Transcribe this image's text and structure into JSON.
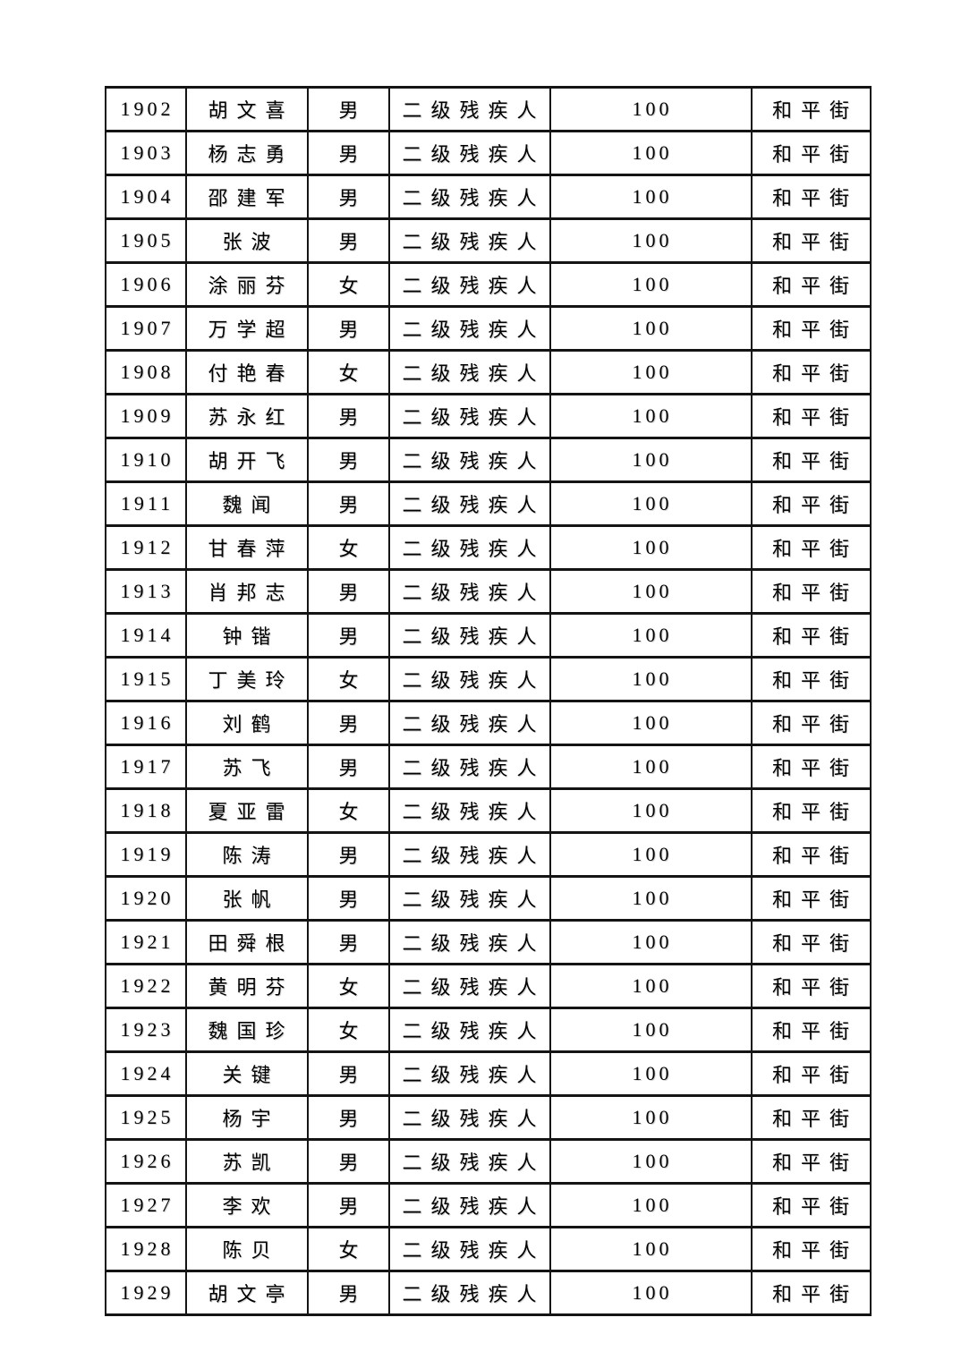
{
  "page": {
    "background_color": "#ffffff",
    "text_color": "#000000",
    "border_color": "#141414"
  },
  "table": {
    "visible_row_range": {
      "first_serial": "1902",
      "last_serial": "1929"
    },
    "column_semantics": [
      "serial",
      "name",
      "gender",
      "category",
      "amount",
      "street"
    ],
    "rows": [
      [
        "1902",
        "胡文喜",
        "男",
        "二级残疾人",
        "100",
        "和平街"
      ],
      [
        "1903",
        "杨志勇",
        "男",
        "二级残疾人",
        "100",
        "和平街"
      ],
      [
        "1904",
        "邵建军",
        "男",
        "二级残疾人",
        "100",
        "和平街"
      ],
      [
        "1905",
        "张波",
        "男",
        "二级残疾人",
        "100",
        "和平街"
      ],
      [
        "1906",
        "涂丽芬",
        "女",
        "二级残疾人",
        "100",
        "和平街"
      ],
      [
        "1907",
        "万学超",
        "男",
        "二级残疾人",
        "100",
        "和平街"
      ],
      [
        "1908",
        "付艳春",
        "女",
        "二级残疾人",
        "100",
        "和平街"
      ],
      [
        "1909",
        "苏永红",
        "男",
        "二级残疾人",
        "100",
        "和平街"
      ],
      [
        "1910",
        "胡开飞",
        "男",
        "二级残疾人",
        "100",
        "和平街"
      ],
      [
        "1911",
        "魏闻",
        "男",
        "二级残疾人",
        "100",
        "和平街"
      ],
      [
        "1912",
        "甘春萍",
        "女",
        "二级残疾人",
        "100",
        "和平街"
      ],
      [
        "1913",
        "肖邦志",
        "男",
        "二级残疾人",
        "100",
        "和平街"
      ],
      [
        "1914",
        "钟锴",
        "男",
        "二级残疾人",
        "100",
        "和平街"
      ],
      [
        "1915",
        "丁美玲",
        "女",
        "二级残疾人",
        "100",
        "和平街"
      ],
      [
        "1916",
        "刘鹤",
        "男",
        "二级残疾人",
        "100",
        "和平街"
      ],
      [
        "1917",
        "苏飞",
        "男",
        "二级残疾人",
        "100",
        "和平街"
      ],
      [
        "1918",
        "夏亚雷",
        "女",
        "二级残疾人",
        "100",
        "和平街"
      ],
      [
        "1919",
        "陈涛",
        "男",
        "二级残疾人",
        "100",
        "和平街"
      ],
      [
        "1920",
        "张帆",
        "男",
        "二级残疾人",
        "100",
        "和平街"
      ],
      [
        "1921",
        "田舜根",
        "男",
        "二级残疾人",
        "100",
        "和平街"
      ],
      [
        "1922",
        "黄明芬",
        "女",
        "二级残疾人",
        "100",
        "和平街"
      ],
      [
        "1923",
        "魏国珍",
        "女",
        "二级残疾人",
        "100",
        "和平街"
      ],
      [
        "1924",
        "关键",
        "男",
        "二级残疾人",
        "100",
        "和平街"
      ],
      [
        "1925",
        "杨宇",
        "男",
        "二级残疾人",
        "100",
        "和平街"
      ],
      [
        "1926",
        "苏凯",
        "男",
        "二级残疾人",
        "100",
        "和平街"
      ],
      [
        "1927",
        "李欢",
        "男",
        "二级残疾人",
        "100",
        "和平街"
      ],
      [
        "1928",
        "陈贝",
        "女",
        "二级残疾人",
        "100",
        "和平街"
      ],
      [
        "1929",
        "胡文亭",
        "男",
        "二级残疾人",
        "100",
        "和平街"
      ]
    ]
  }
}
